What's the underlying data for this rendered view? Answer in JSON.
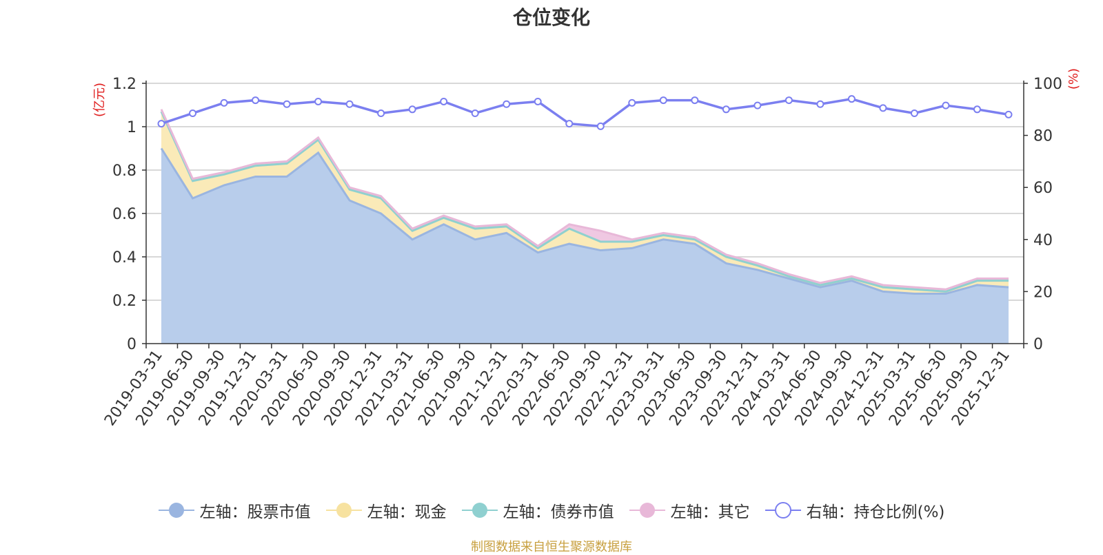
{
  "chart_data": {
    "type": "area",
    "title": "仓位变化",
    "left_unit": "(亿元)",
    "right_unit": "(%)",
    "source": "制图数据来自恒生聚源数据库",
    "left_axis": {
      "min": 0,
      "max": 1.2,
      "ticks": [
        "0",
        "0.2",
        "0.4",
        "0.6",
        "0.8",
        "1",
        "1.2"
      ]
    },
    "right_axis": {
      "min": 0,
      "max": 100,
      "ticks": [
        "0",
        "20",
        "40",
        "60",
        "80",
        "100"
      ]
    },
    "categories": [
      "2019-03-31",
      "2019-06-30",
      "2019-09-30",
      "2019-12-31",
      "2020-03-31",
      "2020-06-30",
      "2020-09-30",
      "2020-12-31",
      "2021-03-31",
      "2021-06-30",
      "2021-09-30",
      "2021-12-31",
      "2022-03-31",
      "2022-06-30",
      "2022-09-30",
      "2022-12-31",
      "2023-03-31",
      "2023-06-30",
      "2023-09-30",
      "2023-12-31",
      "2024-03-31",
      "2024-06-30",
      "2024-09-30",
      "2024-12-31",
      "2025-03-31",
      "2025-06-30",
      "2025-09-30",
      "2025-12-31"
    ],
    "series": [
      {
        "name": "左轴：股票市值",
        "axis": "left",
        "stack": true,
        "color": "#9ab5e0",
        "fill": "#b8cdeb",
        "values": [
          0.9,
          0.67,
          0.73,
          0.77,
          0.77,
          0.88,
          0.66,
          0.6,
          0.48,
          0.55,
          0.48,
          0.51,
          0.42,
          0.46,
          0.43,
          0.44,
          0.48,
          0.46,
          0.37,
          0.34,
          0.3,
          0.26,
          0.29,
          0.24,
          0.23,
          0.23,
          0.27,
          0.26
        ]
      },
      {
        "name": "左轴：现金",
        "axis": "left",
        "stack": true,
        "color": "#f7e2a0",
        "fill": "#faeab8",
        "values": [
          0.17,
          0.08,
          0.05,
          0.05,
          0.06,
          0.06,
          0.05,
          0.07,
          0.04,
          0.03,
          0.05,
          0.03,
          0.02,
          0.07,
          0.04,
          0.03,
          0.02,
          0.02,
          0.03,
          0.02,
          0.01,
          0.01,
          0.01,
          0.02,
          0.02,
          0.01,
          0.02,
          0.03
        ]
      },
      {
        "name": "左轴：债券市值",
        "axis": "left",
        "stack": true,
        "color": "#8fd0d0",
        "fill": "#a8dcdc",
        "values": [
          0,
          0,
          0,
          0,
          0,
          0,
          0,
          0,
          0,
          0,
          0,
          0,
          0,
          0,
          0,
          0,
          0,
          0,
          0,
          0,
          0,
          0,
          0,
          0,
          0,
          0,
          0,
          0
        ]
      },
      {
        "name": "左轴：其它",
        "axis": "left",
        "stack": true,
        "color": "#e8b8d8",
        "fill": "#efc8e2",
        "values": [
          0.01,
          0.01,
          0.01,
          0.01,
          0.01,
          0.01,
          0.01,
          0.01,
          0.01,
          0.01,
          0.01,
          0.01,
          0.01,
          0.02,
          0.05,
          0.01,
          0.01,
          0.01,
          0.01,
          0.01,
          0.01,
          0.01,
          0.01,
          0.01,
          0.01,
          0.01,
          0.01,
          0.01
        ]
      },
      {
        "name": "右轴：持仓比例(%)",
        "axis": "right",
        "stack": false,
        "color": "#7b7ff0",
        "values": [
          84.5,
          88.5,
          92.5,
          93.5,
          92,
          93,
          92,
          88.5,
          90,
          93,
          88.5,
          92,
          93,
          84.5,
          83.5,
          92.5,
          93.5,
          93.5,
          90,
          91.5,
          93.5,
          92,
          94,
          90.5,
          88.5,
          91.5,
          90,
          88
        ]
      }
    ],
    "grid": true,
    "legend_position": "bottom"
  }
}
